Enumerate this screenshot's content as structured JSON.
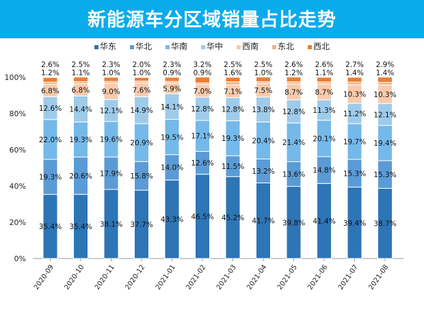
{
  "chart_data": {
    "type": "bar",
    "stacked": true,
    "title": "新能源车分区域销量占比走势",
    "categories": [
      "2020-09",
      "2020-10",
      "2020-11",
      "2020-12",
      "2021-01",
      "2021-02",
      "2021-03",
      "2021-04",
      "2021-05",
      "2021-06",
      "2021-07",
      "2021-08"
    ],
    "series": [
      {
        "name": "华东",
        "color": "#2e75b6",
        "values": [
          35.4,
          35.4,
          38.1,
          37.7,
          43.3,
          46.5,
          45.2,
          41.7,
          39.8,
          41.4,
          39.4,
          38.7
        ]
      },
      {
        "name": "华北",
        "color": "#5b9bd5",
        "values": [
          19.3,
          20.6,
          17.9,
          15.8,
          14.0,
          12.6,
          11.5,
          13.2,
          13.6,
          14.8,
          15.3,
          15.3
        ]
      },
      {
        "name": "华南",
        "color": "#74b9ea",
        "values": [
          22.0,
          19.3,
          19.6,
          20.9,
          19.5,
          17.1,
          19.3,
          20.4,
          21.4,
          20.1,
          19.7,
          19.4
        ]
      },
      {
        "name": "华中",
        "color": "#9fcbeb",
        "values": [
          12.6,
          14.4,
          12.1,
          14.9,
          14.1,
          12.8,
          12.8,
          13.8,
          12.8,
          11.3,
          11.2,
          12.1
        ]
      },
      {
        "name": "西南",
        "color": "#f8cbad",
        "values": [
          6.8,
          6.8,
          9.0,
          7.6,
          5.9,
          7.0,
          7.1,
          7.5,
          8.7,
          8.7,
          10.3,
          10.3
        ]
      },
      {
        "name": "东北",
        "color": "#f4b183",
        "values": [
          1.2,
          1.1,
          1.0,
          1.0,
          0.9,
          0.9,
          1.6,
          1.0,
          1.2,
          1.1,
          1.4,
          1.4
        ]
      },
      {
        "name": "西北",
        "color": "#ed7d31",
        "values": [
          2.6,
          2.5,
          2.3,
          2.0,
          2.3,
          3.2,
          2.5,
          2.5,
          2.6,
          2.6,
          2.7,
          2.9
        ]
      }
    ],
    "ylim": [
      0,
      100
    ],
    "yticks": [
      "0%",
      "20%",
      "40%",
      "60%",
      "80%",
      "100%"
    ],
    "legend": "top",
    "grid": false
  }
}
